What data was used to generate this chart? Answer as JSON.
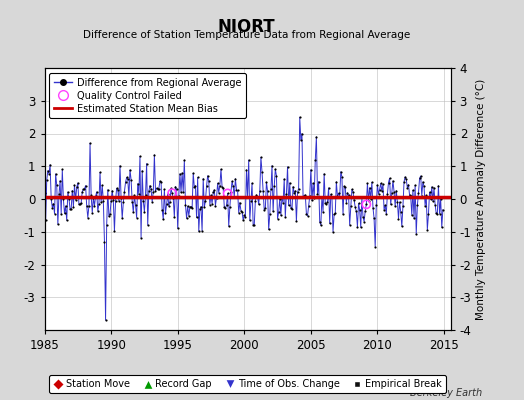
{
  "title": "NIORT",
  "subtitle": "Difference of Station Temperature Data from Regional Average",
  "ylabel": "Monthly Temperature Anomaly Difference (°C)",
  "xlabel_years": [
    1985,
    1990,
    1995,
    2000,
    2005,
    2010,
    2015
  ],
  "ylim": [
    -4,
    4
  ],
  "xlim": [
    1985,
    2015.5
  ],
  "yticks": [
    -3,
    -2,
    -1,
    0,
    1,
    2,
    3
  ],
  "right_yticks": [
    -4,
    -3,
    -2,
    -1,
    0,
    1,
    2,
    3,
    4
  ],
  "bias_value": 0.05,
  "background_color": "#d8d8d8",
  "plot_bg_color": "#ffffff",
  "line_color": "#3333cc",
  "dot_color": "#000000",
  "bias_color": "#cc0000",
  "qc_color": "#ff44ff",
  "watermark": "Berkeley Earth",
  "seed": 17,
  "n_years": 30,
  "start_year": 1985,
  "spike_month_idx": 55,
  "spike_value": -3.7
}
